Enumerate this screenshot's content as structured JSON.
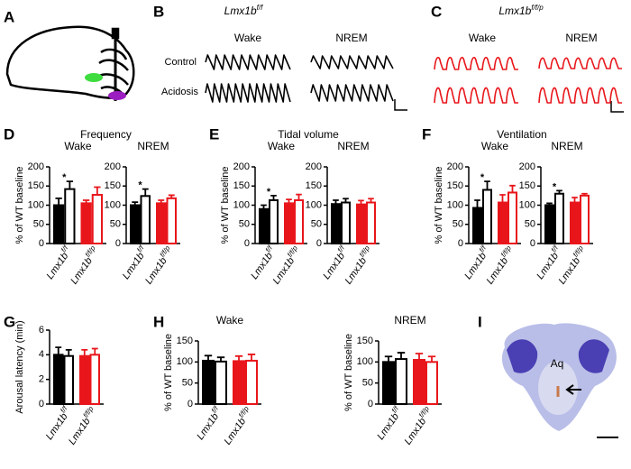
{
  "panel_labels": [
    "A",
    "B",
    "C",
    "D",
    "E",
    "F",
    "G",
    "H",
    "I"
  ],
  "traces": {
    "title": {
      "name": "Lmx1b",
      "sup": "f/f"
    },
    "states": [
      "Wake",
      "NREM"
    ],
    "conditions": [
      "Control",
      "Acidosis"
    ]
  },
  "traces_cko": {
    "title": {
      "name": "Lmx1b",
      "sup": "f/f/p"
    },
    "states": [
      "Wake",
      "NREM"
    ]
  },
  "histology": {
    "label": "Aq"
  },
  "chart_data": [
    {
      "type": "bar",
      "panel": "D",
      "heading": "Frequency",
      "title": "Wake",
      "ylabel": "% of WT baseline",
      "categories": [
        null,
        null,
        null,
        null
      ],
      "values": [
        100,
        142,
        105,
        127
      ],
      "errors": [
        18,
        20,
        8,
        20
      ],
      "colors": [
        "#000000",
        "#000000",
        "#e8161b",
        "#e8161b"
      ],
      "filled": [
        true,
        false,
        true,
        false
      ],
      "groups": [
        {
          "name": "Lmx1b",
          "sup": "f/f"
        },
        {
          "name": "Lmx1b",
          "sup": "f/f/p"
        }
      ],
      "ylim": [
        0,
        200
      ],
      "yticks": [
        0,
        50,
        100,
        150,
        200
      ],
      "significance": [
        {
          "bars": [
            0,
            1
          ],
          "label": "*"
        }
      ]
    },
    {
      "type": "bar",
      "title": "NREM",
      "categories": [
        null,
        null,
        null,
        null
      ],
      "values": [
        100,
        124,
        105,
        118
      ],
      "errors": [
        8,
        18,
        8,
        8
      ],
      "colors": [
        "#000000",
        "#000000",
        "#e8161b",
        "#e8161b"
      ],
      "filled": [
        true,
        false,
        true,
        false
      ],
      "groups": [
        {
          "name": "Lmx1b",
          "sup": "f/f"
        },
        {
          "name": "Lmx1b",
          "sup": "f/f/p"
        }
      ],
      "ylim": [
        0,
        200
      ],
      "yticks": [
        0,
        50,
        100,
        150,
        200
      ],
      "significance": [
        {
          "bars": [
            0,
            1
          ],
          "label": "*"
        }
      ]
    },
    {
      "type": "bar",
      "panel": "E",
      "heading": "Tidal volume",
      "title": "Wake",
      "ylabel": "% of WT baseline",
      "categories": [
        null,
        null,
        null,
        null
      ],
      "values": [
        90,
        113,
        105,
        113
      ],
      "errors": [
        10,
        12,
        10,
        15
      ],
      "colors": [
        "#000000",
        "#000000",
        "#e8161b",
        "#e8161b"
      ],
      "filled": [
        true,
        false,
        true,
        false
      ],
      "groups": [
        {
          "name": "Lmx1b",
          "sup": "f/f"
        },
        {
          "name": "Lmx1b",
          "sup": "f/f/p"
        }
      ],
      "ylim": [
        0,
        200
      ],
      "yticks": [
        0,
        50,
        100,
        150,
        200
      ],
      "significance": [
        {
          "bars": [
            0,
            1
          ],
          "label": "*"
        }
      ]
    },
    {
      "type": "bar",
      "title": "NREM",
      "categories": [
        null,
        null,
        null,
        null
      ],
      "values": [
        103,
        107,
        102,
        107
      ],
      "errors": [
        10,
        10,
        10,
        10
      ],
      "colors": [
        "#000000",
        "#000000",
        "#e8161b",
        "#e8161b"
      ],
      "filled": [
        true,
        false,
        true,
        false
      ],
      "groups": [
        {
          "name": "Lmx1b",
          "sup": "f/f"
        },
        {
          "name": "Lmx1b",
          "sup": "f/f/p"
        }
      ],
      "ylim": [
        0,
        200
      ],
      "yticks": [
        0,
        50,
        100,
        150,
        200
      ]
    },
    {
      "type": "bar",
      "panel": "F",
      "heading": "Ventilation",
      "title": "Wake",
      "ylabel": "% of WT baseline",
      "categories": [
        null,
        null,
        null,
        null
      ],
      "values": [
        93,
        140,
        107,
        133
      ],
      "errors": [
        20,
        22,
        20,
        18
      ],
      "colors": [
        "#000000",
        "#000000",
        "#e8161b",
        "#e8161b"
      ],
      "filled": [
        true,
        false,
        true,
        false
      ],
      "groups": [
        {
          "name": "Lmx1b",
          "sup": "f/f"
        },
        {
          "name": "Lmx1b",
          "sup": "f/f/p"
        }
      ],
      "ylim": [
        0,
        200
      ],
      "yticks": [
        0,
        50,
        100,
        150,
        200
      ],
      "significance": [
        {
          "bars": [
            0,
            1
          ],
          "label": "*"
        }
      ]
    },
    {
      "type": "bar",
      "title": "NREM",
      "categories": [
        null,
        null,
        null,
        null
      ],
      "values": [
        100,
        130,
        107,
        125
      ],
      "errors": [
        5,
        8,
        13,
        5
      ],
      "colors": [
        "#000000",
        "#000000",
        "#e8161b",
        "#e8161b"
      ],
      "filled": [
        true,
        false,
        true,
        false
      ],
      "groups": [
        {
          "name": "Lmx1b",
          "sup": "f/f"
        },
        {
          "name": "Lmx1b",
          "sup": "f/f/p"
        }
      ],
      "ylim": [
        0,
        200
      ],
      "yticks": [
        0,
        50,
        100,
        150,
        200
      ],
      "significance": [
        {
          "bars": [
            0,
            1
          ],
          "label": "*"
        }
      ]
    },
    {
      "type": "bar",
      "panel": "G",
      "ylabel": "Arousal latency (min)",
      "categories": [
        null,
        null,
        null,
        null
      ],
      "values": [
        4.0,
        3.9,
        3.9,
        4.0
      ],
      "errors": [
        0.6,
        0.5,
        0.5,
        0.5
      ],
      "colors": [
        "#000000",
        "#000000",
        "#e8161b",
        "#e8161b"
      ],
      "filled": [
        true,
        false,
        true,
        false
      ],
      "groups": [
        {
          "name": "Lmx1b",
          "sup": "f/f"
        },
        {
          "name": "Lmx1b",
          "sup": "f/f/p"
        }
      ],
      "ylim": [
        0,
        6
      ],
      "yticks": [
        0,
        2,
        4,
        6
      ]
    },
    {
      "type": "bar",
      "panel": "H",
      "title": "Wake",
      "ylabel": "% of WT baseline",
      "categories": [
        null,
        null,
        null,
        null
      ],
      "values": [
        103,
        101,
        102,
        103
      ],
      "errors": [
        12,
        10,
        12,
        15
      ],
      "colors": [
        "#000000",
        "#000000",
        "#e8161b",
        "#e8161b"
      ],
      "filled": [
        true,
        false,
        true,
        false
      ],
      "groups": [
        {
          "name": "Lmx1b",
          "sup": "f/f"
        },
        {
          "name": "Lmx1b",
          "sup": "f/f/p"
        }
      ],
      "ylim": [
        0,
        150
      ],
      "yticks": [
        0,
        50,
        100,
        150
      ]
    },
    {
      "type": "bar",
      "title": "NREM",
      "ylabel": "% of WT baseline",
      "categories": [
        null,
        null,
        null,
        null
      ],
      "values": [
        100,
        107,
        105,
        100
      ],
      "errors": [
        13,
        15,
        15,
        13
      ],
      "colors": [
        "#000000",
        "#000000",
        "#e8161b",
        "#e8161b"
      ],
      "filled": [
        true,
        false,
        true,
        false
      ],
      "groups": [
        {
          "name": "Lmx1b",
          "sup": "f/f"
        },
        {
          "name": "Lmx1b",
          "sup": "f/f/p"
        }
      ],
      "ylim": [
        0,
        150
      ],
      "yticks": [
        0,
        50,
        100,
        150
      ]
    }
  ]
}
